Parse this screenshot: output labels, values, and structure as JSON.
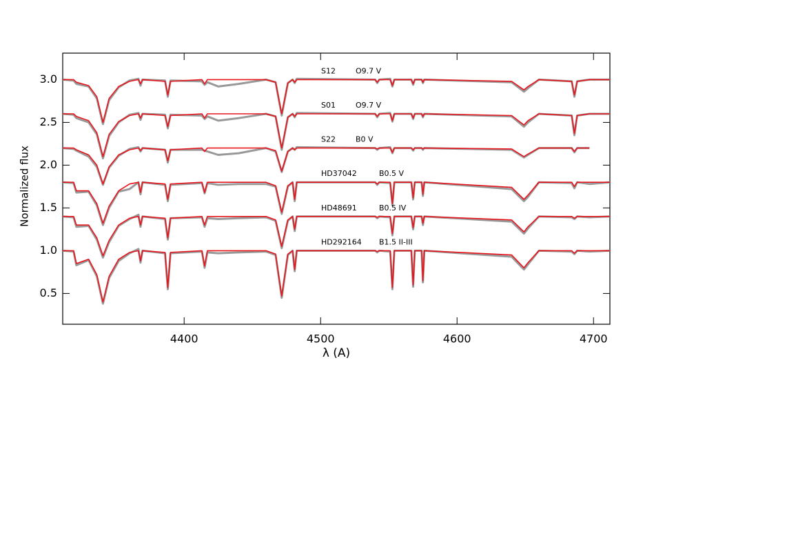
{
  "chart_data": {
    "type": "line",
    "xlabel": "λ (A)",
    "ylabel": "Normalized flux",
    "xlim": [
      4311,
      4712
    ],
    "xticks": [
      4400,
      4500,
      4600,
      4700
    ],
    "ylim": [
      0.14,
      3.31
    ],
    "yticks": [
      0.5,
      {
        "value": 1,
        "label": "1.0"
      },
      1.5,
      {
        "value": 2,
        "label": "2.0"
      },
      2.5,
      {
        "value": 3,
        "label": "3.0"
      }
    ],
    "observed_color": "#999999",
    "model_color": "#e8141c",
    "x": [
      4311,
      4319,
      4321,
      4330,
      4336,
      4340.5,
      4345,
      4352,
      4360,
      4366.5,
      4368,
      4369.5,
      4386,
      4388,
      4390,
      4413,
      4415,
      4417,
      4425,
      4440,
      4460,
      4467,
      4471.5,
      4476,
      4479.5,
      4481,
      4482.5,
      4540,
      4541.5,
      4543,
      4551,
      4552.6,
      4554,
      4566.5,
      4567.8,
      4569,
      4574,
      4575,
      4576,
      4640,
      4649,
      4652,
      4660,
      4684,
      4686,
      4688,
      4697,
      4712
    ],
    "spectra": [
      {
        "name": "S12",
        "sptype": "O9.7 V",
        "observed": [
          3.0,
          2.99,
          2.95,
          2.92,
          2.78,
          2.48,
          2.76,
          2.91,
          2.99,
          3.01,
          2.93,
          3.0,
          2.99,
          2.8,
          2.99,
          2.98,
          2.94,
          2.97,
          2.92,
          2.95,
          3.0,
          2.97,
          2.58,
          2.96,
          3.0,
          2.96,
          3.01,
          3.0,
          2.96,
          3.0,
          3.01,
          2.92,
          3.0,
          3.0,
          2.94,
          3.0,
          3.0,
          2.96,
          3.0,
          2.97,
          2.86,
          2.9,
          3.0,
          2.98,
          2.8,
          2.98,
          3.0,
          3.0
        ],
        "model": [
          3.0,
          3.0,
          2.97,
          2.93,
          2.8,
          2.5,
          2.78,
          2.92,
          2.98,
          3.0,
          2.95,
          3.0,
          2.98,
          2.82,
          2.98,
          3.0,
          2.95,
          3.0,
          3.0,
          3.0,
          3.0,
          2.97,
          2.6,
          2.96,
          3.0,
          2.97,
          3.0,
          3.0,
          2.97,
          3.0,
          3.0,
          2.93,
          3.0,
          3.0,
          2.95,
          3.0,
          3.0,
          2.97,
          3.0,
          2.98,
          2.88,
          2.92,
          3.0,
          2.98,
          2.82,
          2.98,
          3.0,
          3.0
        ]
      },
      {
        "name": "S01",
        "sptype": "O9.7 V",
        "observed": [
          2.6,
          2.59,
          2.55,
          2.5,
          2.36,
          2.08,
          2.34,
          2.5,
          2.59,
          2.61,
          2.53,
          2.6,
          2.59,
          2.43,
          2.59,
          2.58,
          2.54,
          2.57,
          2.52,
          2.55,
          2.6,
          2.57,
          2.18,
          2.56,
          2.6,
          2.56,
          2.61,
          2.6,
          2.56,
          2.6,
          2.61,
          2.51,
          2.6,
          2.6,
          2.54,
          2.6,
          2.6,
          2.56,
          2.6,
          2.57,
          2.45,
          2.5,
          2.6,
          2.58,
          2.35,
          2.58,
          2.6,
          2.6
        ],
        "model": [
          2.6,
          2.6,
          2.57,
          2.52,
          2.38,
          2.1,
          2.36,
          2.51,
          2.58,
          2.6,
          2.55,
          2.6,
          2.58,
          2.45,
          2.58,
          2.6,
          2.55,
          2.6,
          2.6,
          2.6,
          2.6,
          2.57,
          2.2,
          2.56,
          2.6,
          2.57,
          2.6,
          2.6,
          2.57,
          2.6,
          2.6,
          2.52,
          2.6,
          2.6,
          2.55,
          2.6,
          2.6,
          2.57,
          2.6,
          2.58,
          2.47,
          2.52,
          2.6,
          2.58,
          2.37,
          2.58,
          2.6,
          2.6
        ]
      },
      {
        "name": "S22",
        "sptype": "B0 V",
        "observed": [
          2.2,
          2.19,
          2.17,
          2.1,
          1.98,
          1.77,
          1.97,
          2.11,
          2.19,
          2.21,
          2.16,
          2.2,
          2.18,
          2.03,
          2.18,
          2.18,
          2.17,
          2.16,
          2.12,
          2.14,
          2.2,
          2.16,
          1.92,
          2.16,
          2.2,
          2.18,
          2.21,
          2.2,
          2.18,
          2.2,
          2.21,
          2.14,
          2.2,
          2.2,
          2.17,
          2.2,
          2.2,
          2.18,
          2.2,
          2.18,
          2.09,
          2.12,
          2.2,
          2.2,
          2.15,
          2.2,
          2.2,
          null
        ],
        "model": [
          2.2,
          2.2,
          2.18,
          2.12,
          2.0,
          1.78,
          1.98,
          2.12,
          2.18,
          2.2,
          2.17,
          2.2,
          2.18,
          2.05,
          2.18,
          2.2,
          2.16,
          2.2,
          2.2,
          2.2,
          2.2,
          2.17,
          1.93,
          2.16,
          2.2,
          2.18,
          2.2,
          2.2,
          2.19,
          2.2,
          2.2,
          2.15,
          2.2,
          2.2,
          2.18,
          2.2,
          2.2,
          2.19,
          2.2,
          2.19,
          2.1,
          2.13,
          2.2,
          2.2,
          2.16,
          2.2,
          2.2,
          null
        ]
      },
      {
        "name": "HD37042",
        "sptype": "B0.5 V",
        "observed": [
          1.8,
          1.79,
          1.68,
          1.69,
          1.53,
          1.3,
          1.5,
          1.69,
          1.72,
          1.8,
          1.66,
          1.8,
          1.77,
          1.58,
          1.77,
          1.79,
          1.67,
          1.79,
          1.77,
          1.78,
          1.78,
          1.75,
          1.43,
          1.75,
          1.8,
          1.58,
          1.8,
          1.8,
          1.77,
          1.8,
          1.79,
          1.53,
          1.8,
          1.8,
          1.6,
          1.8,
          1.8,
          1.64,
          1.8,
          1.72,
          1.58,
          1.63,
          1.8,
          1.79,
          1.73,
          1.8,
          1.78,
          1.8
        ],
        "model": [
          1.8,
          1.8,
          1.7,
          1.7,
          1.55,
          1.32,
          1.52,
          1.7,
          1.78,
          1.8,
          1.68,
          1.8,
          1.78,
          1.6,
          1.78,
          1.8,
          1.68,
          1.8,
          1.8,
          1.8,
          1.8,
          1.76,
          1.45,
          1.76,
          1.8,
          1.6,
          1.8,
          1.8,
          1.78,
          1.8,
          1.8,
          1.55,
          1.8,
          1.8,
          1.62,
          1.8,
          1.8,
          1.66,
          1.8,
          1.74,
          1.6,
          1.65,
          1.8,
          1.8,
          1.75,
          1.8,
          1.8,
          1.8
        ]
      },
      {
        "name": "HD48691",
        "sptype": "B0.5 IV",
        "observed": [
          1.4,
          1.39,
          1.28,
          1.29,
          1.13,
          0.92,
          1.1,
          1.29,
          1.37,
          1.42,
          1.28,
          1.4,
          1.37,
          1.13,
          1.38,
          1.39,
          1.28,
          1.38,
          1.37,
          1.38,
          1.39,
          1.35,
          1.03,
          1.35,
          1.4,
          1.23,
          1.4,
          1.4,
          1.38,
          1.4,
          1.39,
          1.18,
          1.4,
          1.4,
          1.25,
          1.4,
          1.4,
          1.3,
          1.4,
          1.34,
          1.2,
          1.26,
          1.4,
          1.39,
          1.37,
          1.4,
          1.39,
          1.4
        ],
        "model": [
          1.4,
          1.4,
          1.3,
          1.3,
          1.15,
          0.94,
          1.12,
          1.3,
          1.38,
          1.4,
          1.3,
          1.4,
          1.38,
          1.15,
          1.38,
          1.4,
          1.3,
          1.4,
          1.4,
          1.4,
          1.4,
          1.36,
          1.05,
          1.36,
          1.4,
          1.25,
          1.4,
          1.4,
          1.39,
          1.4,
          1.4,
          1.2,
          1.4,
          1.4,
          1.27,
          1.4,
          1.4,
          1.32,
          1.4,
          1.36,
          1.22,
          1.28,
          1.4,
          1.4,
          1.38,
          1.4,
          1.4,
          1.4
        ]
      },
      {
        "name": "HD292164",
        "sptype": "B1.5 II-III",
        "observed": [
          1.0,
          0.99,
          0.83,
          0.89,
          0.7,
          0.38,
          0.68,
          0.88,
          0.97,
          1.02,
          0.86,
          1.0,
          0.97,
          0.55,
          0.97,
          0.99,
          0.8,
          0.98,
          0.97,
          0.98,
          0.99,
          0.95,
          0.45,
          0.95,
          1.0,
          0.76,
          1.0,
          1.0,
          0.98,
          1.0,
          0.99,
          0.55,
          1.0,
          1.0,
          0.58,
          1.0,
          1.0,
          0.63,
          1.0,
          0.93,
          0.78,
          0.84,
          1.0,
          0.99,
          0.96,
          1.0,
          0.99,
          1.0
        ],
        "model": [
          1.0,
          1.0,
          0.85,
          0.9,
          0.72,
          0.4,
          0.7,
          0.9,
          0.98,
          1.0,
          0.88,
          1.0,
          0.98,
          0.57,
          0.98,
          1.0,
          0.82,
          1.0,
          1.0,
          1.0,
          1.0,
          0.96,
          0.47,
          0.96,
          1.0,
          0.78,
          1.0,
          1.0,
          0.99,
          1.0,
          1.0,
          0.57,
          1.0,
          1.0,
          0.6,
          1.0,
          1.0,
          0.65,
          1.0,
          0.95,
          0.8,
          0.86,
          1.0,
          1.0,
          0.97,
          1.0,
          1.0,
          1.0
        ]
      }
    ]
  }
}
